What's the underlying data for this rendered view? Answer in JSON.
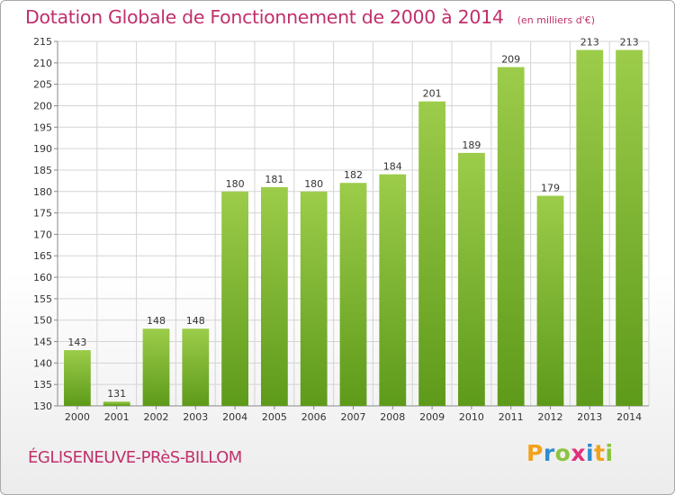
{
  "header": {
    "title": "Dotation Globale de Fonctionnement de 2000 à 2014",
    "unit": "(en milliers d'€)"
  },
  "footer": {
    "commune": "ÉGLISENEUVE-PRèS-BILLOM",
    "brand_letters": [
      "P",
      "r",
      "o",
      "x",
      "i",
      "t",
      "i"
    ],
    "brand_colors": [
      "#f2a21b",
      "#2f8dd0",
      "#8cc43f",
      "#e2307a",
      "#2f8dd0",
      "#f2a21b",
      "#8cc43f"
    ]
  },
  "chart_data": {
    "type": "bar",
    "title": "Dotation Globale de Fonctionnement de 2000 à 2014",
    "subtitle": "(en milliers d'€)",
    "xlabel": "",
    "ylabel": "",
    "categories": [
      "2000",
      "2001",
      "2002",
      "2003",
      "2004",
      "2005",
      "2006",
      "2007",
      "2008",
      "2009",
      "2010",
      "2011",
      "2012",
      "2013",
      "2014"
    ],
    "values": [
      143,
      131,
      148,
      148,
      180,
      181,
      180,
      182,
      184,
      201,
      189,
      209,
      179,
      213,
      213
    ],
    "ylim": [
      130,
      215
    ],
    "yticks": [
      130,
      135,
      140,
      145,
      150,
      155,
      160,
      165,
      170,
      175,
      180,
      185,
      190,
      195,
      200,
      205,
      210,
      215
    ],
    "grid": true,
    "legend": "none",
    "bar_color_top": "#9ccc4a",
    "bar_color_bottom": "#5e9a1a"
  }
}
